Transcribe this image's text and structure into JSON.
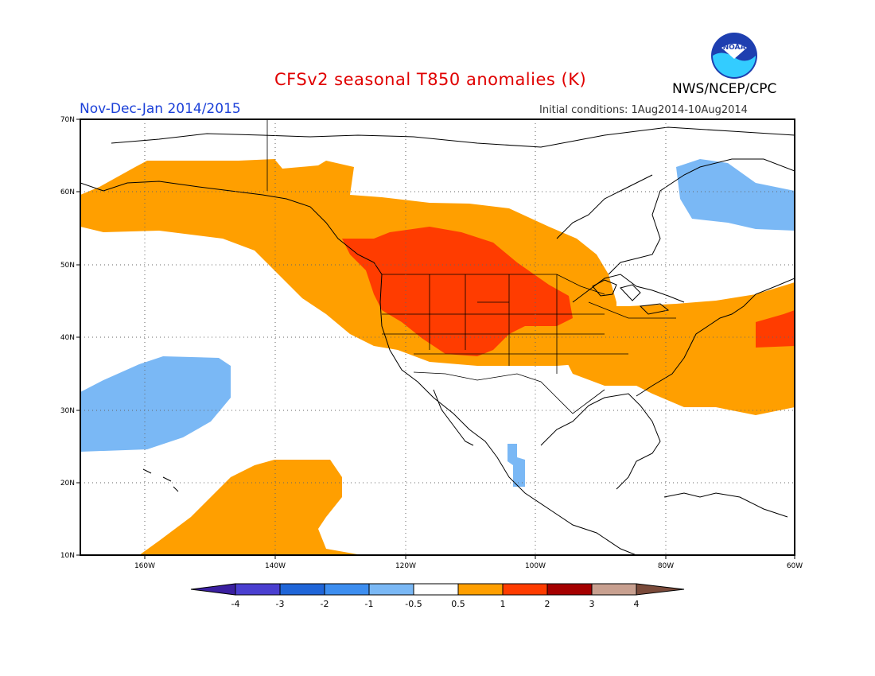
{
  "title": "CFSv2 seasonal T850 anomalies (K)",
  "season": "Nov-Dec-Jan 2014/2015",
  "initial_conditions": "Initial conditions:  1Aug2014-10Aug2014",
  "agency": "NWS/NCEP/CPC",
  "logo_text": "NOAA",
  "map": {
    "lon_range": [
      -170,
      -60
    ],
    "lat_range": [
      10,
      70
    ],
    "lon_ticks": [
      "160W",
      "140W",
      "120W",
      "100W",
      "80W",
      "60W"
    ],
    "lat_ticks": [
      "10N",
      "20N",
      "30N",
      "40N",
      "50N",
      "60N",
      "70N"
    ],
    "grid": "dotted"
  },
  "colorbar": {
    "labels": [
      "-4",
      "-3",
      "-2",
      "-1",
      "-0.5",
      "0.5",
      "1",
      "2",
      "3",
      "4"
    ],
    "colors": [
      "#3a1fa0",
      "#4a3fd0",
      "#1f65d8",
      "#3d8ef0",
      "#7ab8f5",
      "#ffffff",
      "#ff9f00",
      "#ff3c00",
      "#a50000",
      "#c8a090",
      "#7a4a3a"
    ]
  },
  "anomaly_regions": [
    {
      "level": "0.5 to 1",
      "color": "#ff9f00",
      "area": "Alaska, Bering Sea, western Canada and NE Pacific"
    },
    {
      "level": "0.5 to 1",
      "color": "#ff9f00",
      "area": "central and eastern United States, western Atlantic"
    },
    {
      "level": "0.5 to 1",
      "color": "#ff9f00",
      "area": "subtropical central Pacific near Hawaii"
    },
    {
      "level": "1 to 2",
      "color": "#ff3c00",
      "area": "Pacific Northwest, northern Rockies and northern Plains"
    },
    {
      "level": "1 to 2",
      "color": "#ff3c00",
      "area": "western Atlantic near 40N 65W"
    },
    {
      "level": "-1 to -0.5",
      "color": "#7ab8f5",
      "area": "central Pacific near 32N 160W"
    },
    {
      "level": "-1 to -0.5",
      "color": "#7ab8f5",
      "area": "Labrador / northern Quebec"
    },
    {
      "level": "-1 to -0.5",
      "color": "#7ab8f5",
      "area": "off Baja California near 22N 105W"
    }
  ]
}
